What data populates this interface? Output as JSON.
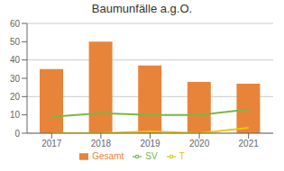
{
  "chart_data": {
    "type": "bar",
    "title": "Baumunfälle a.g.O.",
    "categories": [
      "2017",
      "2018",
      "2019",
      "2020",
      "2021"
    ],
    "series": [
      {
        "name": "Gesamt",
        "type": "bar",
        "color": "#E8843A",
        "values": [
          35,
          50,
          37,
          28,
          27
        ]
      },
      {
        "name": "T",
        "type": "line",
        "color": "#E8C800",
        "values": [
          0,
          0,
          1,
          0,
          3
        ]
      },
      {
        "name": "SV",
        "type": "line",
        "color": "#7AB648",
        "values": [
          9,
          11,
          10,
          10,
          13
        ]
      }
    ],
    "ylim": [
      0,
      60
    ],
    "yticks": [
      0,
      10,
      20,
      30,
      40,
      50,
      60
    ],
    "grid": true,
    "legend": "bottom"
  }
}
